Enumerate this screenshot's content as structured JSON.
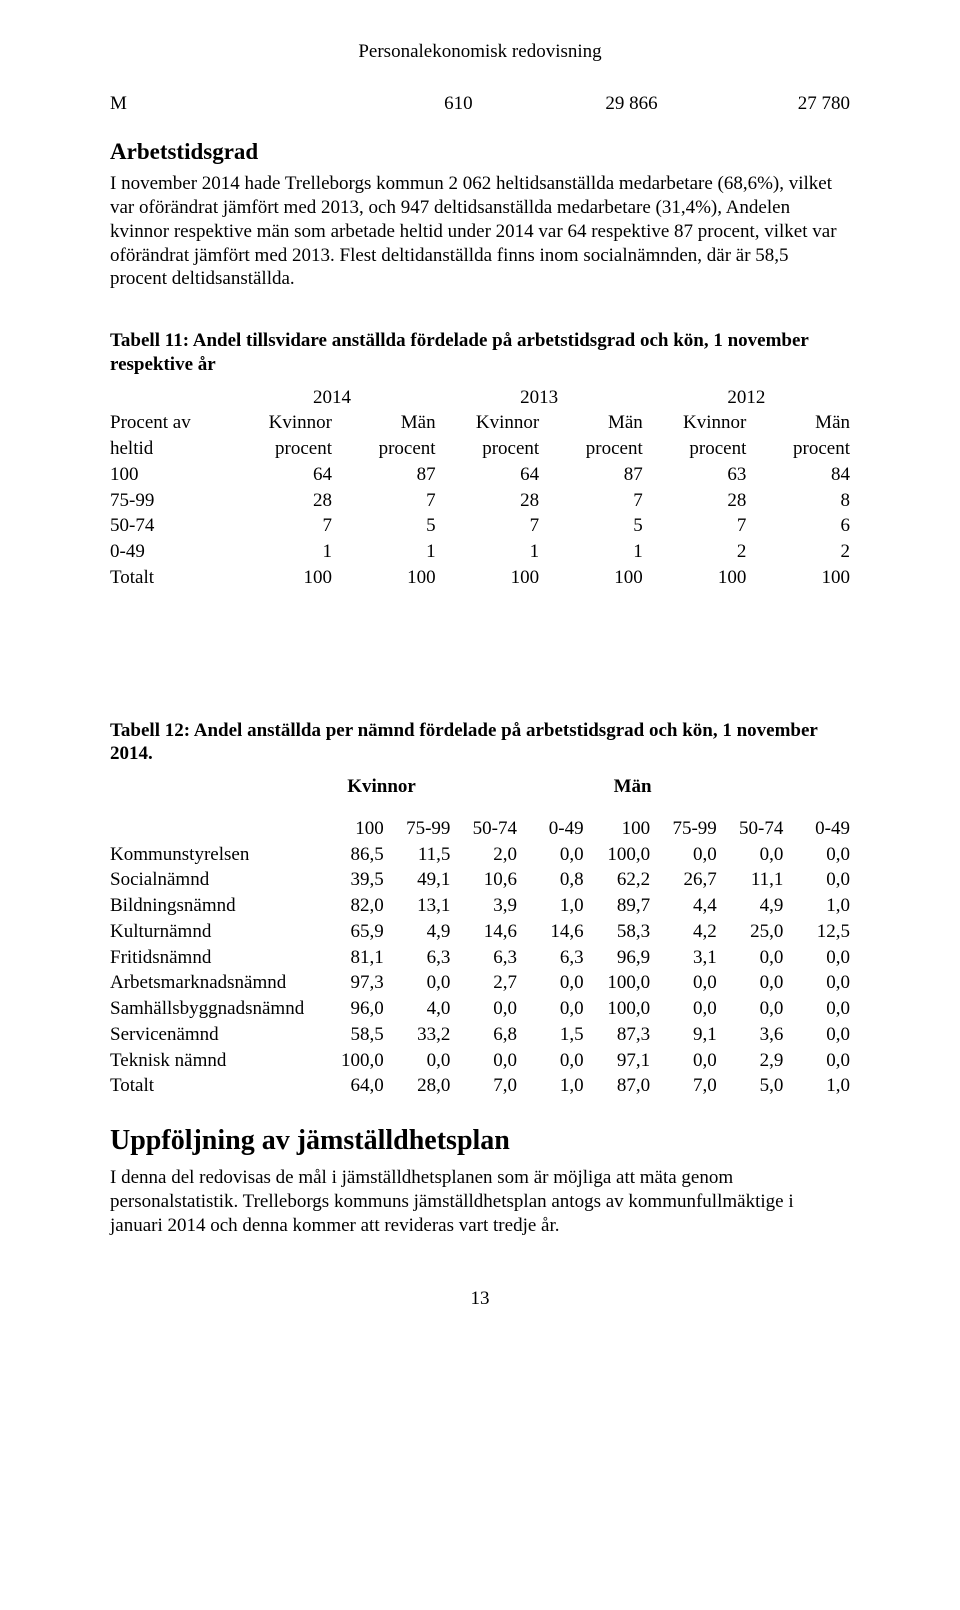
{
  "header_title": "Personalekonomisk redovisning",
  "m_line": {
    "label": "M",
    "c1": "610",
    "c2": "29 866",
    "c3": "27 780"
  },
  "section1": {
    "heading": "Arbetstidsgrad",
    "para": "I november 2014 hade Trelleborgs kommun 2 062 heltidsanställda medarbetare (68,6%), vilket var oförändrat jämfört med 2013, och 947 deltidsanställda medarbetare (31,4%), Andelen kvinnor respektive män som arbetade heltid under 2014 var 64 respektive 87 procent, vilket var oförändrat jämfört med 2013. Flest deltidanställda finns inom socialnämnden, där är 58,5 procent deltidsanställda."
  },
  "table11": {
    "caption": "Tabell 11: Andel tillsvidare anställda fördelade på arbetstidsgrad och kön, 1 november respektive år",
    "years": [
      "2014",
      "2013",
      "2012"
    ],
    "row_label_1": "Procent av",
    "row_label_2": "heltid",
    "col_headers_1": [
      "Kvinnor",
      "Män",
      "Kvinnor",
      "Män",
      "Kvinnor",
      "Män"
    ],
    "col_headers_2": [
      "procent",
      "procent",
      "procent",
      "procent",
      "procent",
      "procent"
    ],
    "rows": [
      {
        "label": "100",
        "v": [
          "64",
          "87",
          "64",
          "87",
          "63",
          "84"
        ]
      },
      {
        "label": "75-99",
        "v": [
          "28",
          "7",
          "28",
          "7",
          "28",
          "8"
        ]
      },
      {
        "label": "50-74",
        "v": [
          "7",
          "5",
          "7",
          "5",
          "7",
          "6"
        ]
      },
      {
        "label": " 0-49",
        "v": [
          "1",
          "1",
          "1",
          "1",
          "2",
          "2"
        ]
      },
      {
        "label": "Totalt",
        "v": [
          "100",
          "100",
          "100",
          "100",
          "100",
          "100"
        ]
      }
    ]
  },
  "table12": {
    "caption": "Tabell 12: Andel anställda per nämnd fördelade på arbetstidsgrad och kön, 1 november 2014.",
    "group_headers": [
      "Kvinnor",
      "Män"
    ],
    "col_headers": [
      "100",
      "75-99",
      "50-74",
      "0-49",
      "100",
      "75-99",
      "50-74",
      "0-49"
    ],
    "rows": [
      {
        "label": "Kommunstyrelsen",
        "v": [
          "86,5",
          "11,5",
          "2,0",
          "0,0",
          "100,0",
          "0,0",
          "0,0",
          "0,0"
        ]
      },
      {
        "label": "Socialnämnd",
        "v": [
          "39,5",
          "49,1",
          "10,6",
          "0,8",
          "62,2",
          "26,7",
          "11,1",
          "0,0"
        ]
      },
      {
        "label": "Bildningsnämnd",
        "v": [
          "82,0",
          "13,1",
          "3,9",
          "1,0",
          "89,7",
          "4,4",
          "4,9",
          "1,0"
        ]
      },
      {
        "label": "Kulturnämnd",
        "v": [
          "65,9",
          "4,9",
          "14,6",
          "14,6",
          "58,3",
          "4,2",
          "25,0",
          "12,5"
        ]
      },
      {
        "label": "Fritidsnämnd",
        "v": [
          "81,1",
          "6,3",
          "6,3",
          "6,3",
          "96,9",
          "3,1",
          "0,0",
          "0,0"
        ]
      },
      {
        "label": "Arbetsmarknadsnämnd",
        "v": [
          "97,3",
          "0,0",
          "2,7",
          "0,0",
          "100,0",
          "0,0",
          "0,0",
          "0,0"
        ]
      },
      {
        "label": "Samhällsbyggnadsnämnd",
        "v": [
          "96,0",
          "4,0",
          "0,0",
          "0,0",
          "100,0",
          "0,0",
          "0,0",
          "0,0"
        ]
      },
      {
        "label": "Servicenämnd",
        "v": [
          "58,5",
          "33,2",
          "6,8",
          "1,5",
          "87,3",
          "9,1",
          "3,6",
          "0,0"
        ]
      },
      {
        "label": "Teknisk nämnd",
        "v": [
          "100,0",
          "0,0",
          "0,0",
          "0,0",
          "97,1",
          "0,0",
          "2,9",
          "0,0"
        ]
      },
      {
        "label": "Totalt",
        "v": [
          "64,0",
          "28,0",
          "7,0",
          "1,0",
          "87,0",
          "7,0",
          "5,0",
          "1,0"
        ]
      }
    ]
  },
  "section2": {
    "heading": "Uppföljning av jämställdhetsplan",
    "para": "I denna del redovisas de mål i jämställdhetsplanen som är möjliga att mäta genom personalstatistik. Trelleborgs kommuns jämställdhetsplan antogs av kommunfullmäktige i januari 2014 och denna kommer att revideras vart tredje år."
  },
  "page_number": "13",
  "style": {
    "font_family": "Times New Roman",
    "body_fontsize_pt": 14,
    "h2_fontsize_pt": 17,
    "h2_big_fontsize_pt": 21,
    "text_color": "#000000",
    "background_color": "#ffffff"
  }
}
